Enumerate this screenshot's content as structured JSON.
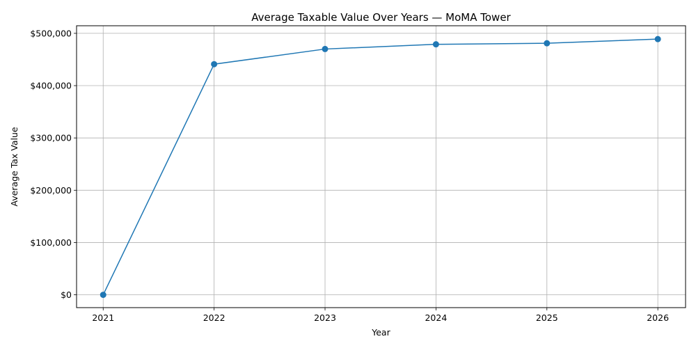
{
  "chart_data": {
    "type": "line",
    "title": "Average Taxable Value Over Years — MoMA Tower",
    "xlabel": "Year",
    "ylabel": "Average Tax Value",
    "x": [
      2021,
      2022,
      2023,
      2024,
      2025,
      2026
    ],
    "y": [
      0,
      441000,
      470000,
      479000,
      481000,
      489000
    ],
    "xticks": [
      "2021",
      "2022",
      "2023",
      "2024",
      "2025",
      "2026"
    ],
    "yticks": [
      0,
      100000,
      200000,
      300000,
      400000,
      500000
    ],
    "ytick_labels": [
      "$0",
      "$100,000",
      "$200,000",
      "$300,000",
      "$400,000",
      "$500,000"
    ],
    "xlim": [
      2020.76,
      2026.25
    ],
    "ylim": [
      -24500,
      514500
    ],
    "grid": true,
    "color": "#1f77b4",
    "marker": "circle"
  }
}
